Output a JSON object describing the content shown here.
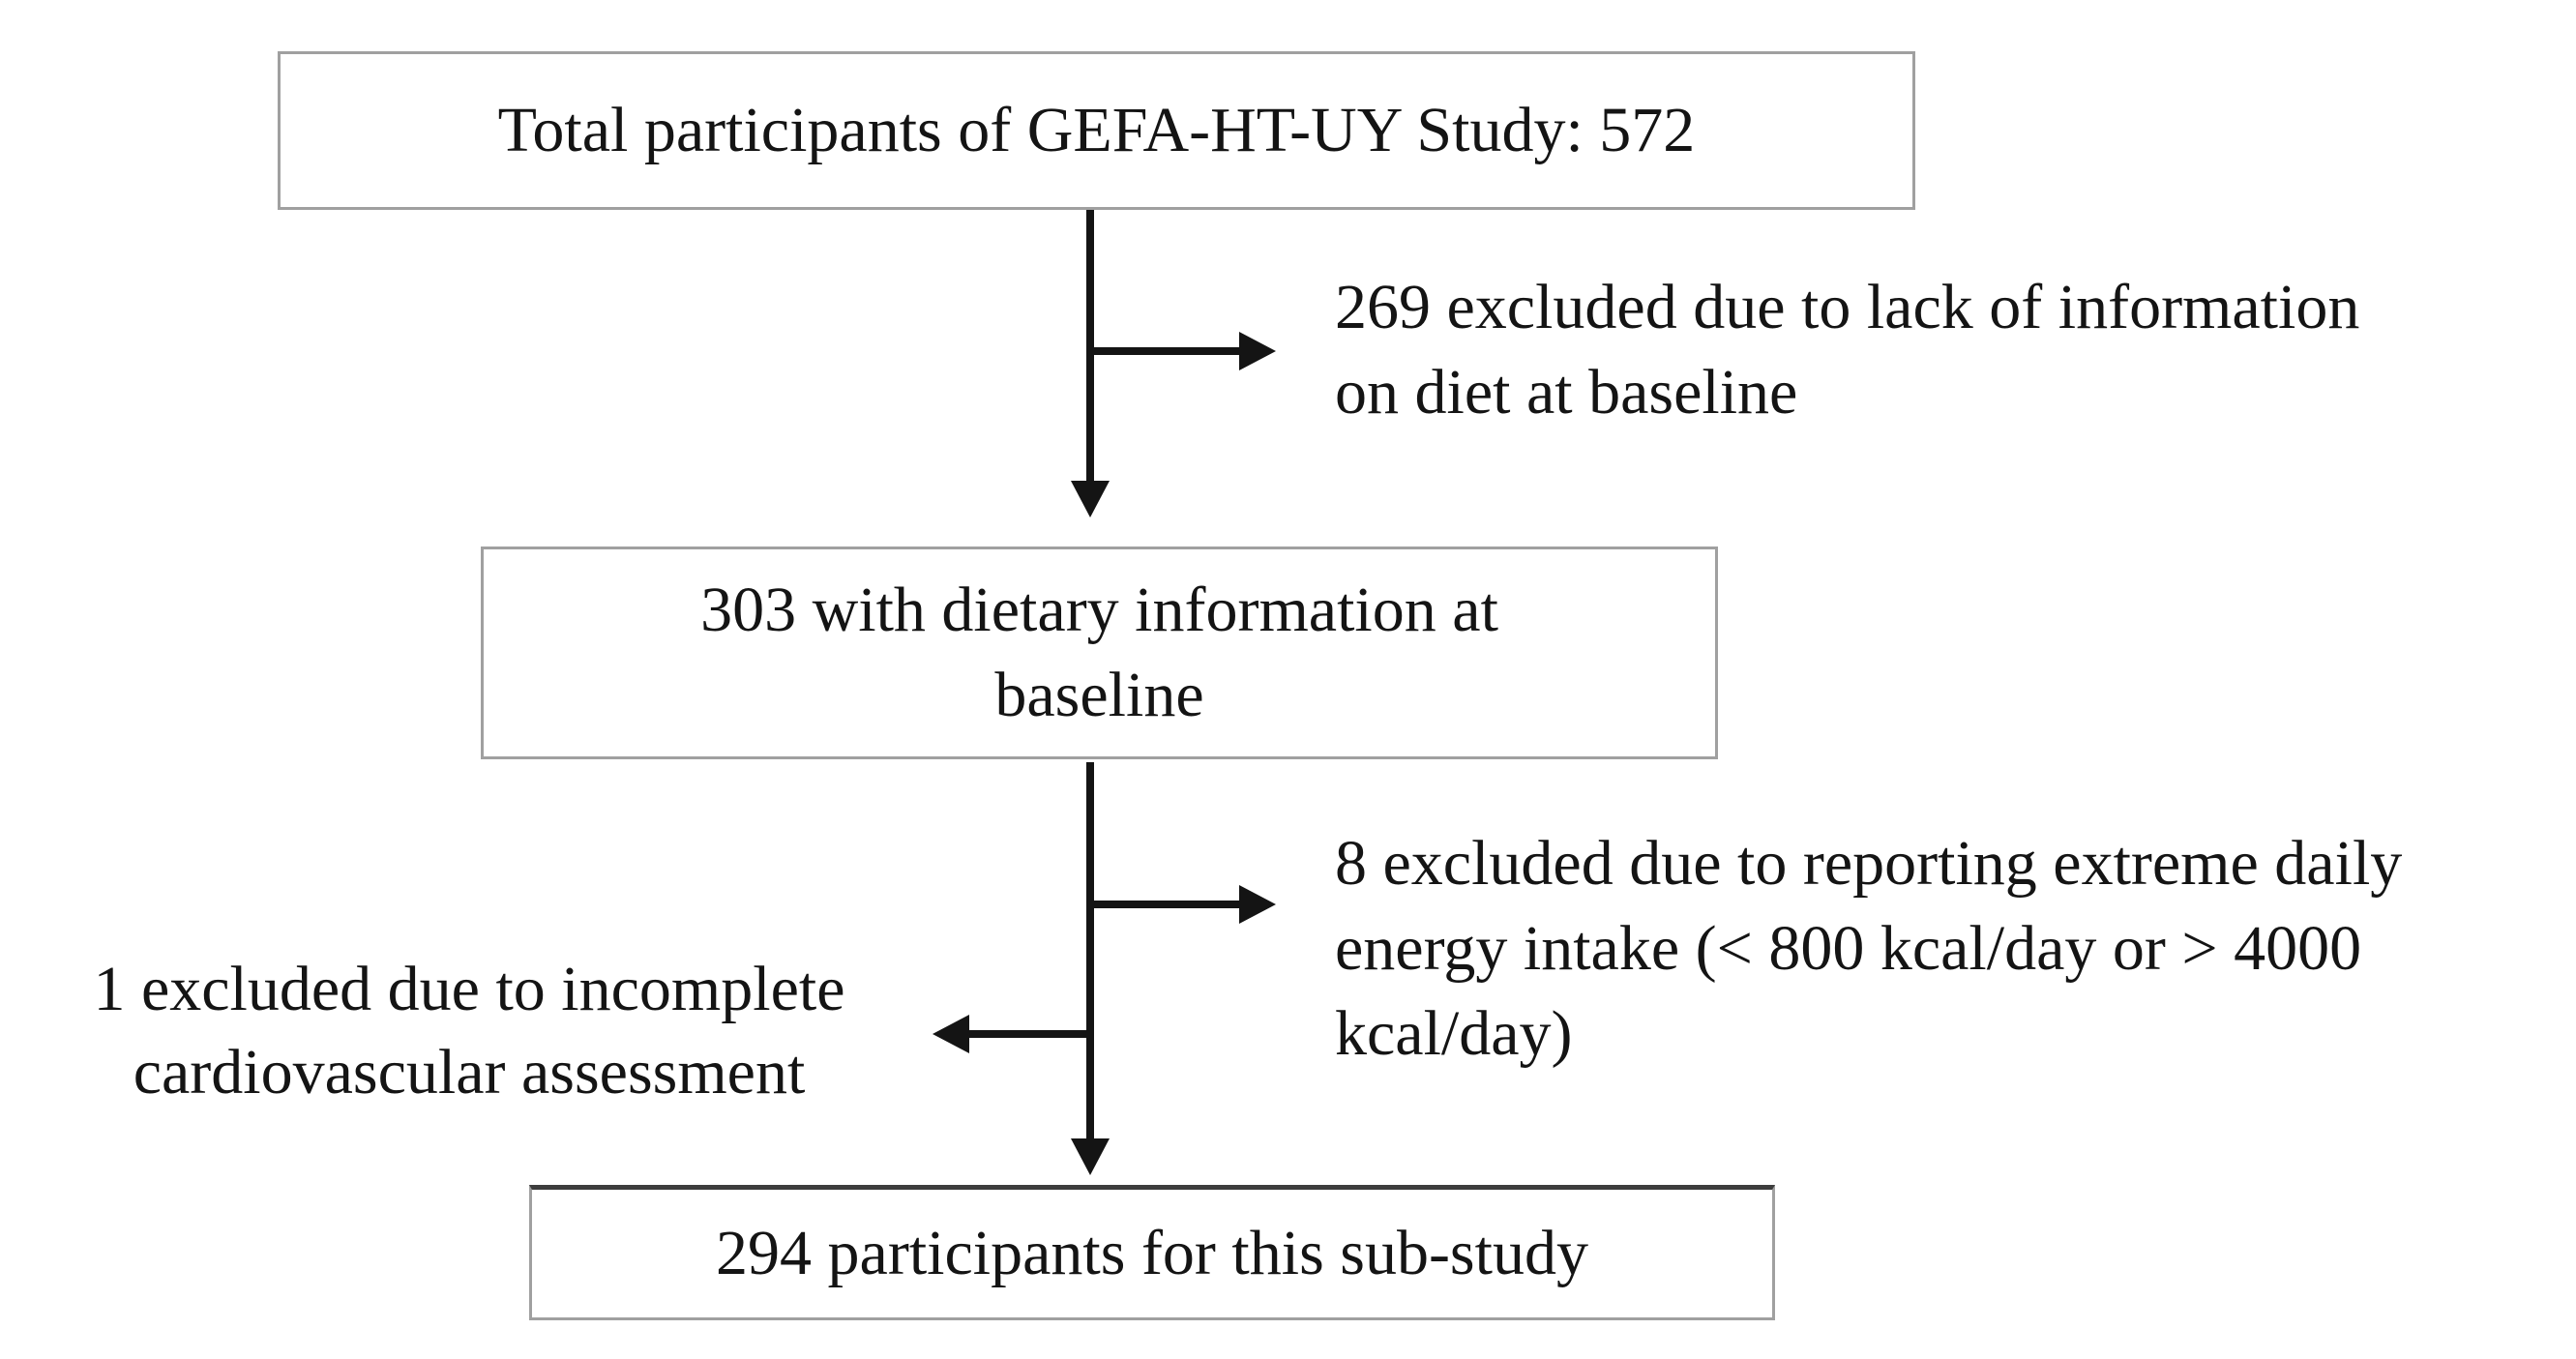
{
  "figure": {
    "boxes": {
      "total": "Total participants of GEFA-HT-UY Study: 572",
      "dietary": "303 with dietary information at\nbaseline",
      "final": "294 participants for this sub-study"
    },
    "exclusions": {
      "diet": "269 excluded due to lack of information\non diet at baseline",
      "energy": "8 excluded due to reporting extreme daily\nenergy intake (< 800 kcal/day or > 4000\nkcal/day)",
      "cardio": "1 excluded due to incomplete\ncardiovascular assessment"
    },
    "colors": {
      "text": "#141414",
      "arrow": "#141414",
      "box_border": "#a0a0a0",
      "final_box_top_border": "#3d3d3d",
      "background": "#ffffff"
    }
  }
}
